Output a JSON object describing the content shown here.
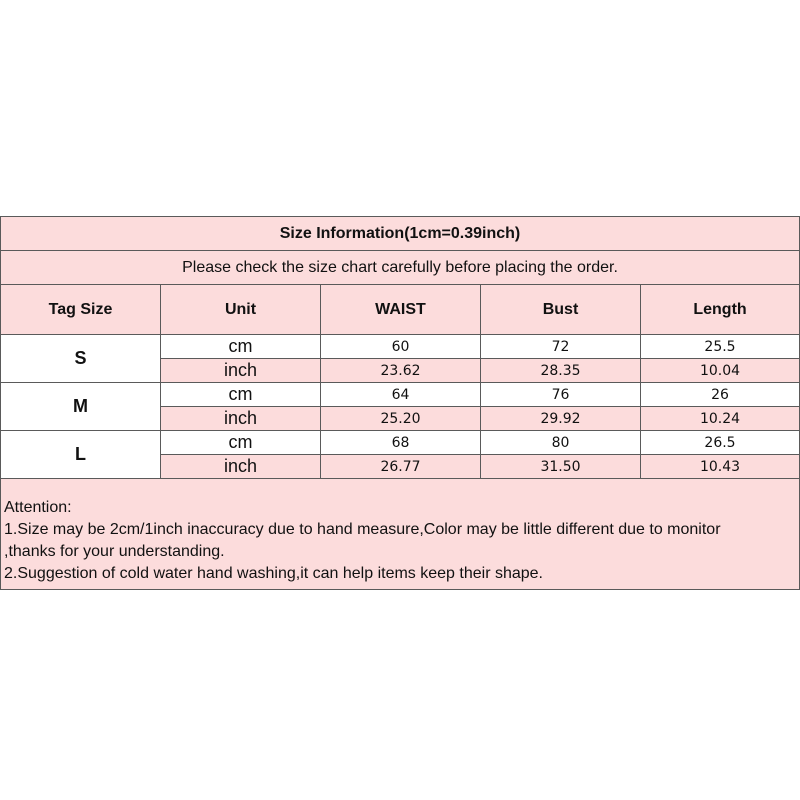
{
  "title": "Size Information(1cm=0.39inch)",
  "subtitle": "Please check the size chart carefully before placing the order.",
  "headers": [
    "Tag Size",
    "Unit",
    "WAIST",
    "Bust",
    "Length"
  ],
  "rows": [
    {
      "size": "S",
      "cm": [
        "60",
        "72",
        "25.5"
      ],
      "inch": [
        "23.62",
        "28.35",
        "10.04"
      ]
    },
    {
      "size": "M",
      "cm": [
        "64",
        "76",
        "26"
      ],
      "inch": [
        "25.20",
        "29.92",
        "10.24"
      ]
    },
    {
      "size": "L",
      "cm": [
        "68",
        "80",
        "26.5"
      ],
      "inch": [
        "26.77",
        "31.50",
        "10.43"
      ]
    }
  ],
  "units": {
    "cm": "cm",
    "inch": "inch"
  },
  "attention": [
    "Attention:",
    "1.Size may be 2cm/1inch inaccuracy due to hand measure,Color may be little different due to monitor",
    ",thanks for your understanding.",
    "2.Suggestion of cold water hand washing,it can help items keep their shape."
  ],
  "colors": {
    "pink": "#fcdcdc",
    "border": "#5a5a5a"
  }
}
